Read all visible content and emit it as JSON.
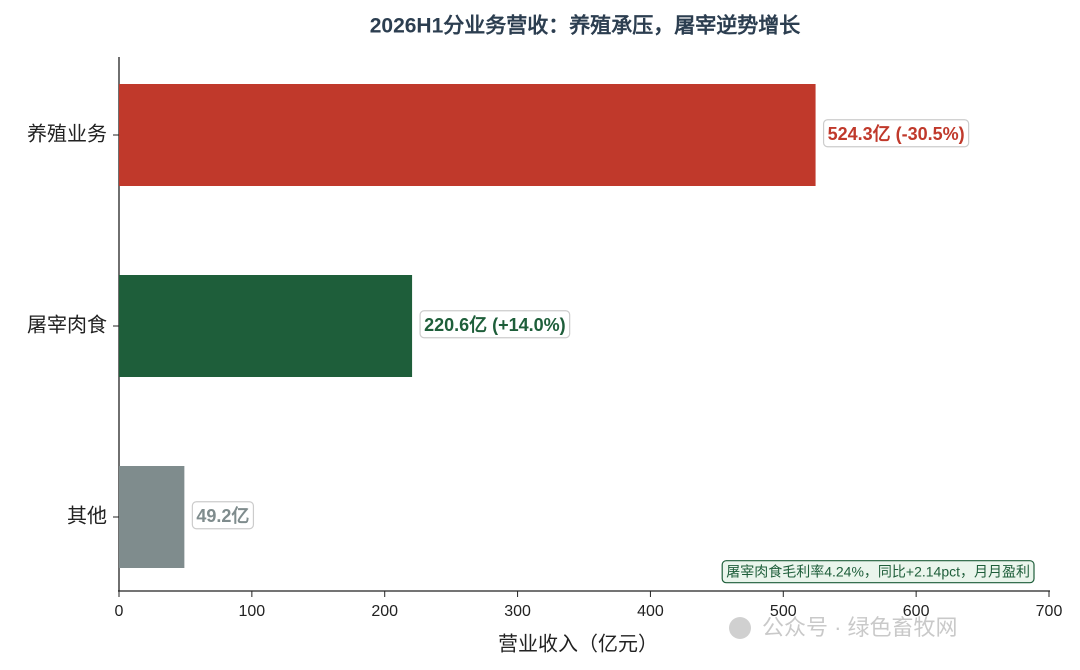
{
  "chart_data": {
    "type": "bar",
    "orientation": "horizontal",
    "title": "2026H1分业务营收：养殖承压，屠宰逆势增长",
    "categories": [
      "养殖业务",
      "屠宰肉食",
      "其他"
    ],
    "values": [
      524.3,
      220.6,
      49.2
    ],
    "value_labels": [
      "524.3亿 (-30.5%)",
      "220.6亿 (+14.0%)",
      "49.2亿"
    ],
    "colors": [
      "#c0392b",
      "#1e5e3a",
      "#7f8c8d"
    ],
    "xlabel": "营业收入（亿元）",
    "xlim": [
      0,
      700
    ],
    "xticks": [
      0,
      100,
      200,
      300,
      400,
      500,
      600,
      700
    ],
    "grid": false,
    "annotation": "屠宰肉食毛利率4.24%，同比+2.14pct，月月盈利",
    "watermark": "公众号 · 绿色畜牧网"
  }
}
